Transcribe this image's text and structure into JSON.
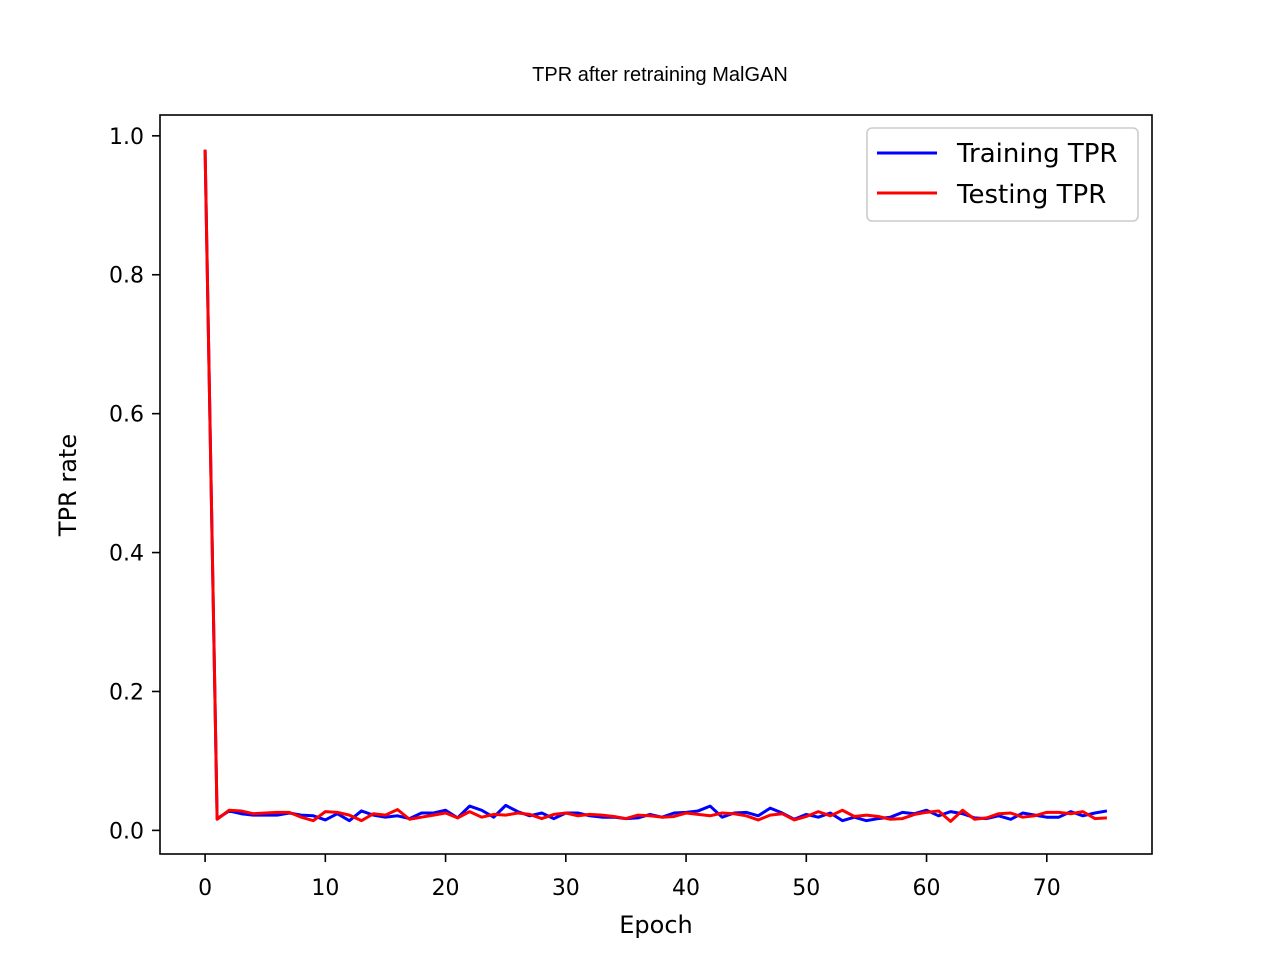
{
  "chart_data": {
    "type": "line",
    "title": "TPR after retraining MalGAN",
    "xlabel": "Epoch",
    "ylabel": "TPR rate",
    "xlim": [
      -3.75,
      78.75
    ],
    "ylim": [
      -0.034,
      1.03
    ],
    "xticks": [
      0,
      10,
      20,
      30,
      40,
      50,
      60,
      70
    ],
    "yticks": [
      0.0,
      0.2,
      0.4,
      0.6,
      0.8,
      1.0
    ],
    "grid": false,
    "legend": "top-right",
    "x": [
      0,
      1,
      2,
      3,
      4,
      5,
      6,
      7,
      8,
      9,
      10,
      11,
      12,
      13,
      14,
      15,
      16,
      17,
      18,
      19,
      20,
      21,
      22,
      23,
      24,
      25,
      26,
      27,
      28,
      29,
      30,
      31,
      32,
      33,
      34,
      35,
      36,
      37,
      38,
      39,
      40,
      41,
      42,
      43,
      44,
      45,
      46,
      47,
      48,
      49,
      50,
      51,
      52,
      53,
      54,
      55,
      56,
      57,
      58,
      59,
      60,
      61,
      62,
      63,
      64,
      65,
      66,
      67,
      68,
      69,
      70,
      71,
      72,
      73,
      74,
      75
    ],
    "series": [
      {
        "name": "Training TPR",
        "color": "#0000ff",
        "values": [
          0.98,
          0.017,
          0.028,
          0.024,
          0.022,
          0.022,
          0.022,
          0.025,
          0.022,
          0.021,
          0.015,
          0.024,
          0.014,
          0.028,
          0.022,
          0.019,
          0.021,
          0.017,
          0.025,
          0.025,
          0.029,
          0.018,
          0.035,
          0.029,
          0.019,
          0.036,
          0.027,
          0.021,
          0.025,
          0.017,
          0.025,
          0.025,
          0.021,
          0.019,
          0.019,
          0.017,
          0.018,
          0.023,
          0.019,
          0.025,
          0.026,
          0.028,
          0.035,
          0.019,
          0.025,
          0.026,
          0.021,
          0.032,
          0.025,
          0.016,
          0.023,
          0.019,
          0.025,
          0.014,
          0.019,
          0.014,
          0.017,
          0.019,
          0.026,
          0.024,
          0.029,
          0.021,
          0.027,
          0.024,
          0.018,
          0.017,
          0.021,
          0.016,
          0.025,
          0.022,
          0.019,
          0.019,
          0.027,
          0.021,
          0.025,
          0.028
        ]
      },
      {
        "name": "Testing TPR",
        "color": "#ff0000",
        "values": [
          0.98,
          0.016,
          0.029,
          0.028,
          0.024,
          0.025,
          0.026,
          0.026,
          0.019,
          0.014,
          0.027,
          0.026,
          0.022,
          0.014,
          0.024,
          0.022,
          0.03,
          0.016,
          0.019,
          0.022,
          0.025,
          0.018,
          0.027,
          0.019,
          0.023,
          0.022,
          0.025,
          0.023,
          0.017,
          0.023,
          0.025,
          0.021,
          0.023,
          0.022,
          0.02,
          0.017,
          0.022,
          0.021,
          0.019,
          0.02,
          0.025,
          0.023,
          0.021,
          0.025,
          0.024,
          0.021,
          0.015,
          0.022,
          0.024,
          0.015,
          0.02,
          0.027,
          0.021,
          0.029,
          0.02,
          0.022,
          0.02,
          0.016,
          0.017,
          0.023,
          0.026,
          0.028,
          0.013,
          0.029,
          0.016,
          0.018,
          0.024,
          0.025,
          0.019,
          0.021,
          0.026,
          0.026,
          0.024,
          0.027,
          0.017,
          0.018
        ]
      }
    ]
  }
}
